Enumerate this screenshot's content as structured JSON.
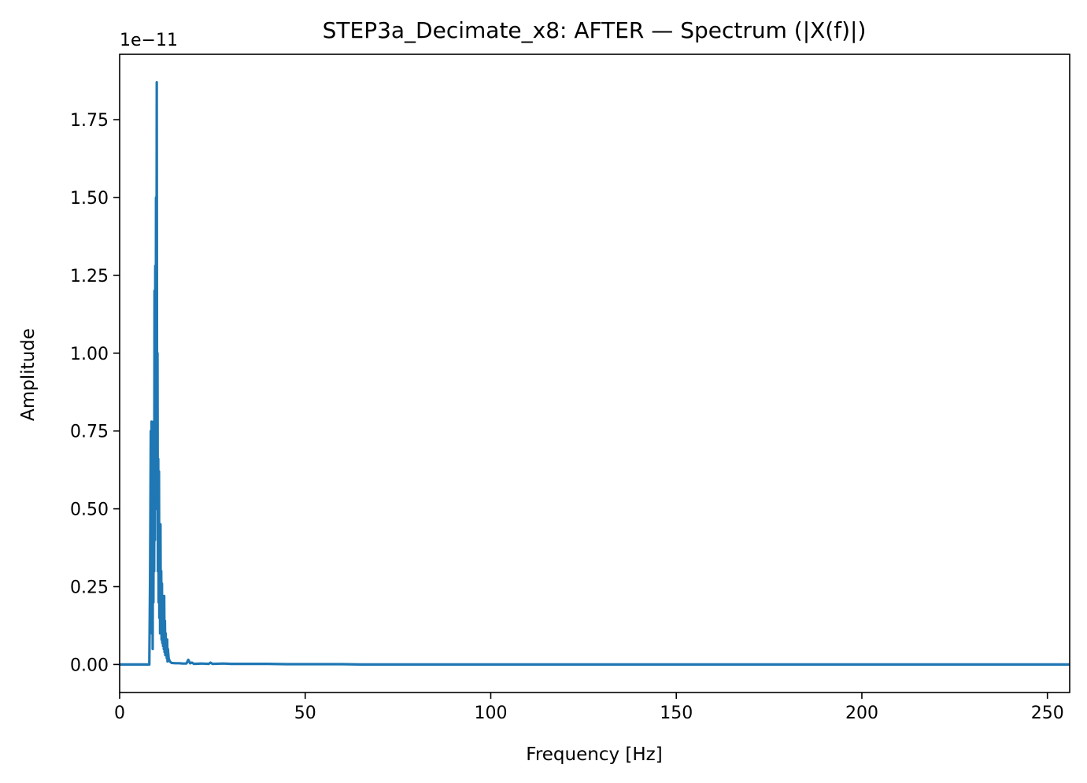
{
  "chart_data": {
    "type": "line",
    "title": "STEP3a_Decimate_x8: AFTER — Spectrum (|X(f)|)",
    "xlabel": "Frequency [Hz]",
    "ylabel": "Amplitude",
    "xlim": [
      0,
      256
    ],
    "ylim": [
      -0.09,
      1.96
    ],
    "y_offset_text": "1e−11",
    "x_ticks": [
      0,
      50,
      100,
      150,
      200,
      250
    ],
    "x_tick_labels": [
      "0",
      "50",
      "100",
      "150",
      "200",
      "250"
    ],
    "y_ticks": [
      0.0,
      0.25,
      0.5,
      0.75,
      1.0,
      1.25,
      1.5,
      1.75
    ],
    "y_tick_labels": [
      "0.00",
      "0.25",
      "0.50",
      "0.75",
      "1.00",
      "1.25",
      "1.50",
      "1.75"
    ],
    "grid": false,
    "legend": "none",
    "series": [
      {
        "color": "#1f77b4",
        "x": [
          0,
          8.0,
          8.2,
          8.4,
          8.5,
          8.6,
          8.7,
          8.8,
          8.9,
          9.0,
          9.1,
          9.2,
          9.3,
          9.4,
          9.5,
          9.6,
          9.7,
          9.8,
          9.9,
          10.0,
          10.1,
          10.2,
          10.3,
          10.4,
          10.5,
          10.6,
          10.7,
          10.8,
          10.9,
          11.0,
          11.1,
          11.2,
          11.3,
          11.4,
          11.5,
          11.6,
          11.7,
          11.8,
          11.9,
          12.0,
          12.1,
          12.2,
          12.3,
          12.4,
          12.5,
          12.6,
          12.7,
          12.8,
          12.9,
          13.0,
          13.2,
          13.5,
          14.0,
          15.0,
          16.0,
          17.0,
          18.0,
          18.5,
          19.0,
          19.5,
          20.0,
          22.0,
          24.0,
          24.5,
          25.0,
          28.0,
          30.0,
          35.0,
          40.0,
          45.0,
          50.0,
          55.0,
          60.0,
          65.0,
          256
        ],
        "y": [
          0,
          0,
          0.28,
          0.75,
          0.2,
          0.78,
          0.1,
          0.72,
          0.05,
          0.6,
          0.2,
          0.78,
          0.3,
          1.2,
          0.4,
          1.28,
          0.5,
          1.5,
          0.7,
          1.87,
          0.5,
          1.0,
          0.3,
          0.66,
          0.2,
          0.62,
          0.15,
          0.45,
          0.1,
          0.45,
          0.12,
          0.3,
          0.08,
          0.26,
          0.07,
          0.22,
          0.06,
          0.2,
          0.05,
          0.22,
          0.04,
          0.14,
          0.03,
          0.1,
          0.03,
          0.08,
          0.02,
          0.08,
          0.01,
          0.05,
          0.02,
          0.01,
          0.005,
          0.004,
          0.004,
          0.003,
          0.003,
          0.015,
          0.004,
          0.006,
          0.002,
          0.003,
          0.002,
          0.006,
          0.002,
          0.003,
          0.002,
          0.002,
          0.002,
          0.001,
          0.001,
          0.001,
          0.001,
          0.0,
          0.0
        ]
      }
    ]
  }
}
